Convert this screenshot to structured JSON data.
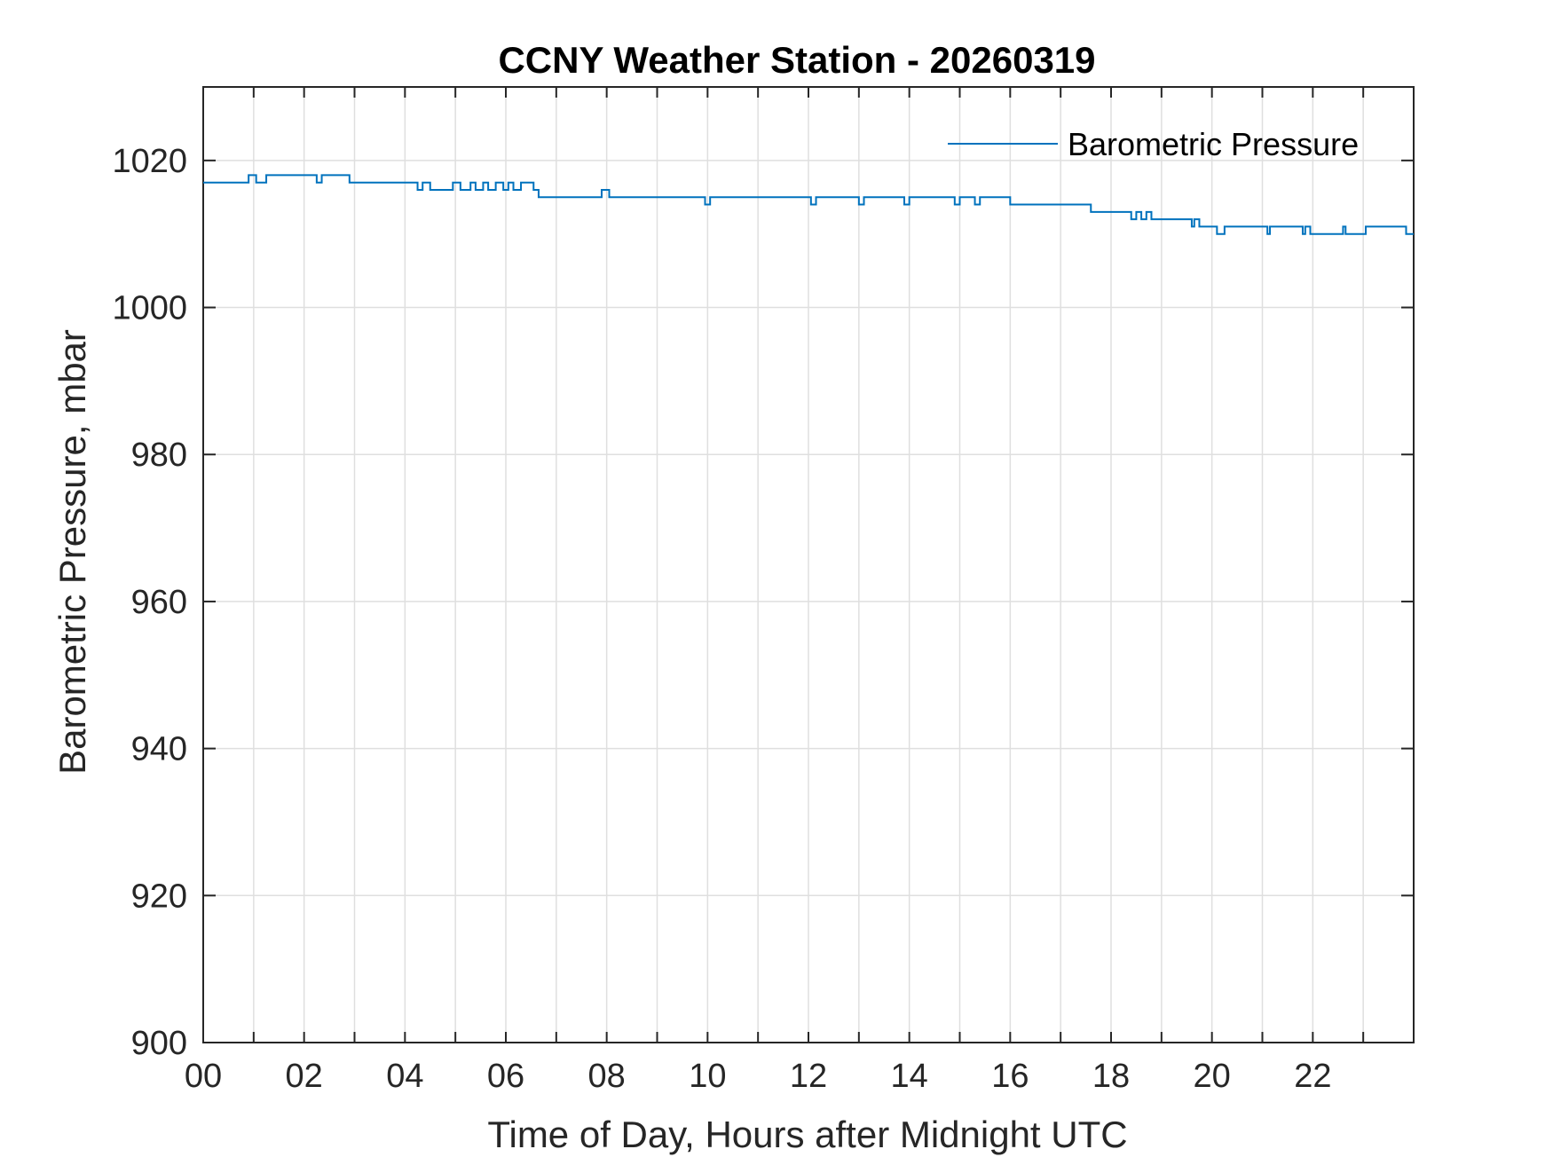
{
  "colors": {
    "series": "#0072bd"
  },
  "chart_data": {
    "type": "line",
    "title": "CCNY Weather Station - 20260319",
    "xlabel": "Time of Day, Hours after Midnight UTC",
    "ylabel": "Barometric Pressure, mbar",
    "xlim": [
      0,
      24
    ],
    "ylim": [
      900,
      1030
    ],
    "xticks": [
      0,
      2,
      4,
      6,
      8,
      10,
      12,
      14,
      16,
      18,
      20,
      22
    ],
    "xtick_labels": [
      "00",
      "02",
      "04",
      "06",
      "08",
      "10",
      "12",
      "14",
      "16",
      "18",
      "20",
      "22"
    ],
    "yticks": [
      900,
      920,
      940,
      960,
      980,
      1000,
      1020
    ],
    "ytick_labels": [
      "900",
      "920",
      "940",
      "960",
      "980",
      "1000",
      "1020"
    ],
    "grid": true,
    "legend": {
      "position": "top-right",
      "entries": [
        "Barometric Pressure"
      ]
    },
    "series": [
      {
        "name": "Barometric Pressure",
        "interpolation": "step",
        "x": [
          0,
          0.9,
          1.05,
          1.25,
          2.25,
          2.35,
          2.9,
          4.25,
          4.35,
          4.5,
          4.95,
          5.1,
          5.3,
          5.4,
          5.55,
          5.65,
          5.8,
          5.95,
          6.05,
          6.15,
          6.3,
          6.55,
          6.65,
          7.9,
          8.05,
          8.1,
          9.95,
          10.05,
          12.05,
          12.15,
          13.0,
          13.1,
          13.2,
          13.9,
          14.0,
          14.9,
          15.0,
          15.3,
          15.4,
          16.0,
          17.6,
          18.4,
          18.5,
          18.6,
          18.7,
          18.8,
          19.6,
          19.65,
          19.75,
          19.85,
          20.1,
          20.25,
          21.1,
          21.15,
          21.8,
          21.85,
          21.95,
          22.6,
          22.65,
          23.05,
          23.85,
          23.95
        ],
        "y": [
          1017,
          1018,
          1017,
          1018,
          1017,
          1018,
          1017,
          1016,
          1017,
          1016,
          1017,
          1016,
          1017,
          1016,
          1017,
          1016,
          1017,
          1016,
          1017,
          1016,
          1017,
          1016,
          1015,
          1016,
          1015,
          1015,
          1014,
          1015,
          1014,
          1015,
          1014,
          1015,
          1015,
          1014,
          1015,
          1014,
          1015,
          1014,
          1015,
          1014,
          1013,
          1012,
          1013,
          1012,
          1013,
          1012,
          1011,
          1012,
          1011,
          1011,
          1010,
          1011,
          1010,
          1011,
          1010,
          1011,
          1010,
          1011,
          1010,
          1011,
          1010,
          1010
        ]
      }
    ]
  }
}
